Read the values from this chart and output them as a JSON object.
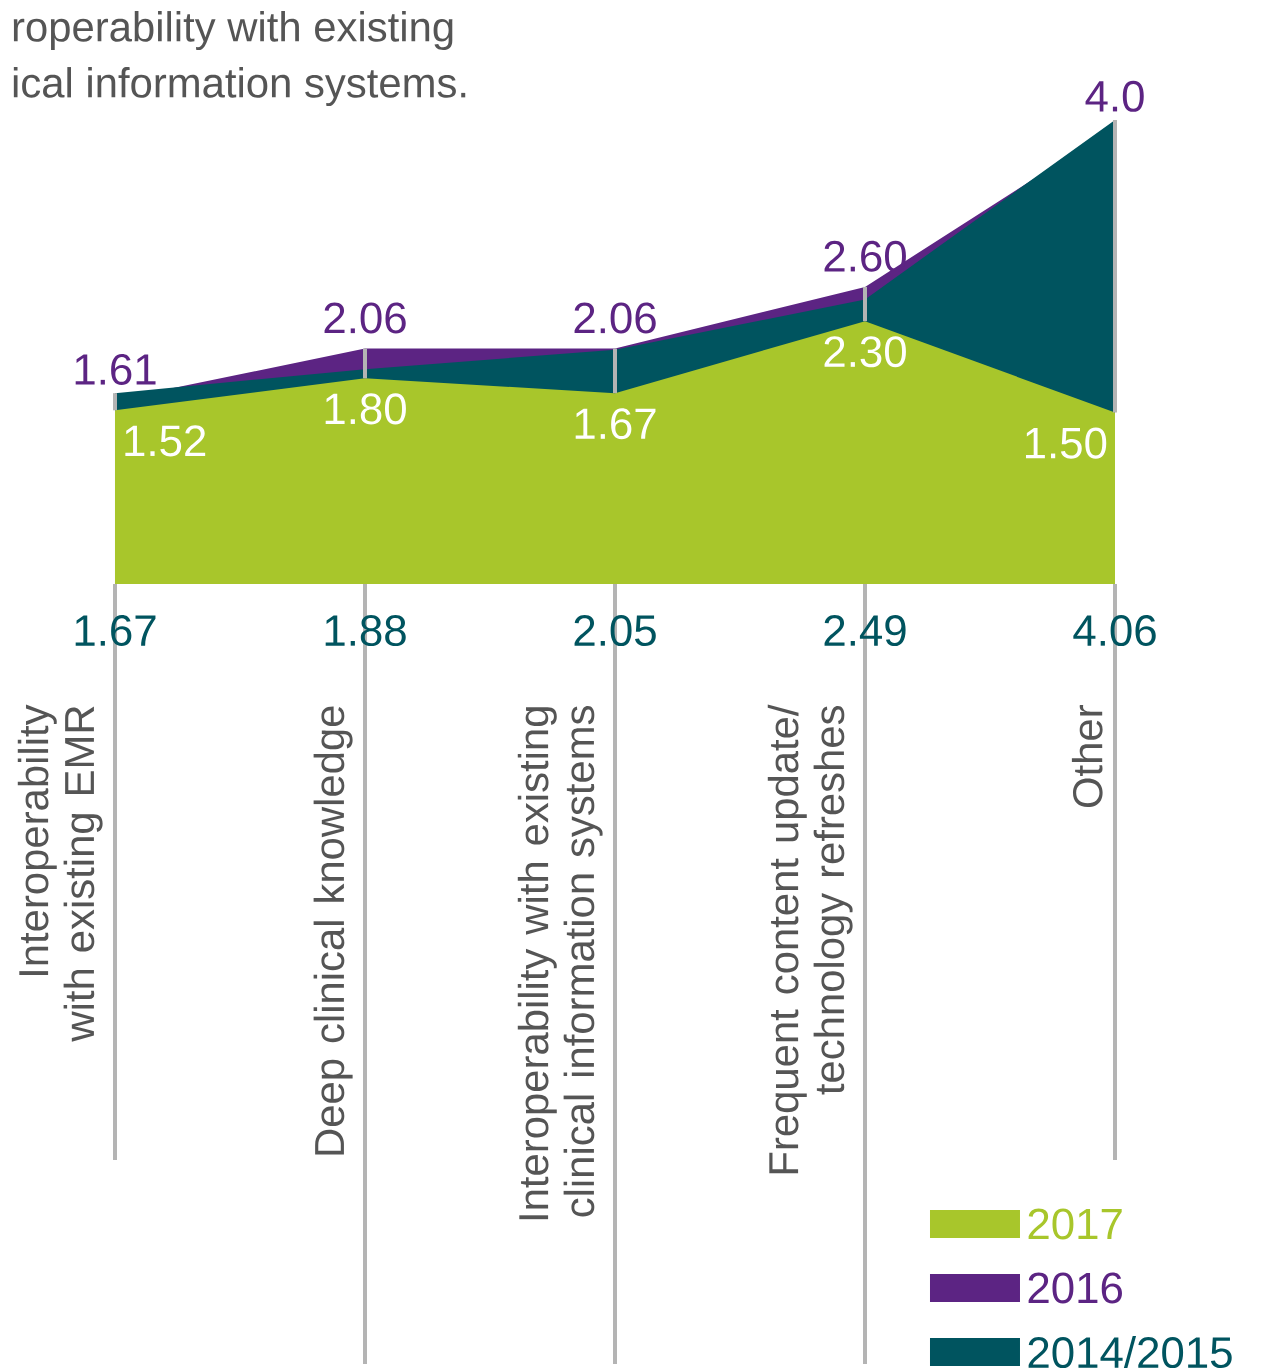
{
  "chart_data": {
    "type": "area",
    "annotations": [
      "roperability with existing",
      "ical information systems."
    ],
    "categories": [
      "Interoperability with existing EMR",
      "Deep clinical knowledge",
      "Interoperability with existing clinical information systems",
      "Frequent content update/ technology refreshes",
      "Other"
    ],
    "series": [
      {
        "name": "2017",
        "color": "#a8c62b",
        "values": [
          1.52,
          1.8,
          1.67,
          2.3,
          1.5
        ],
        "value_labels": [
          "1.52",
          "1.80",
          "1.67",
          "2.30",
          "1.50"
        ]
      },
      {
        "name": "2016",
        "color": "#5c2483",
        "values": [
          1.61,
          2.06,
          2.06,
          2.6,
          4.0
        ],
        "value_labels": [
          "1.61",
          "2.06",
          "2.06",
          "2.60",
          "4.0"
        ]
      },
      {
        "name": "2014/2015",
        "color": "#00545f",
        "values": [
          1.67,
          1.88,
          2.05,
          2.49,
          4.06
        ],
        "value_labels": [
          "1.67",
          "1.88",
          "2.05",
          "2.49",
          "4.06"
        ]
      }
    ],
    "legend": "bottom right"
  }
}
